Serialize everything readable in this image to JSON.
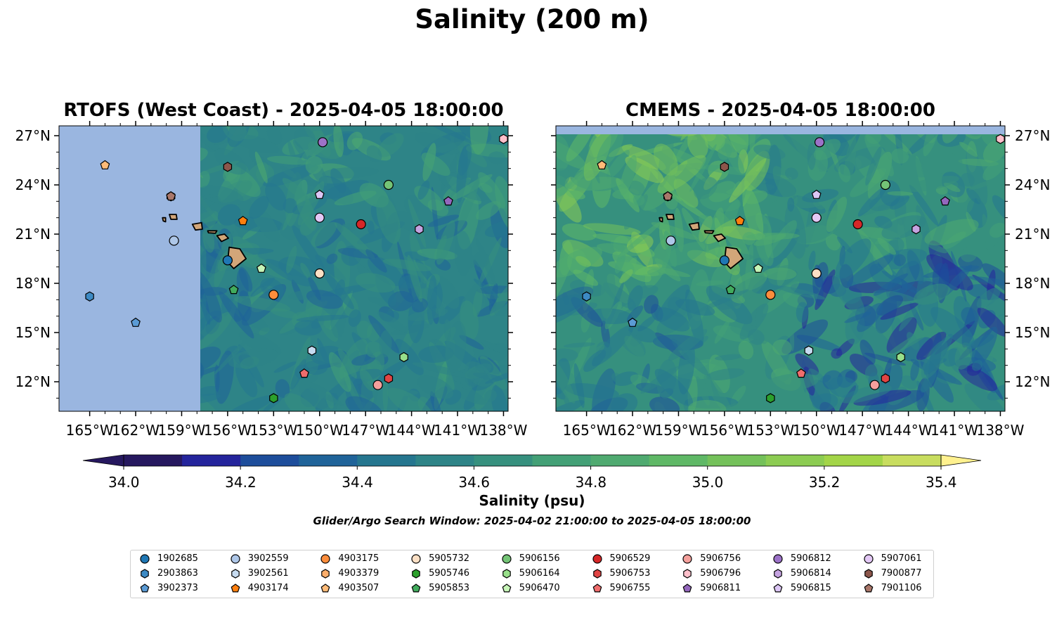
{
  "title": "Salinity (200 m)",
  "panels": [
    {
      "title": "RTOFS (West Coast) - 2025-04-05 18:00:00"
    },
    {
      "title": "CMEMS - 2025-04-05 18:00:00"
    }
  ],
  "colorbar": {
    "label": "Salinity (psu)",
    "ticks": [
      "34.0",
      "34.2",
      "34.4",
      "34.6",
      "34.8",
      "35.0",
      "35.2",
      "35.4"
    ]
  },
  "search_window": "Glider/Argo Search Window: 2025-04-02 21:00:00 to 2025-04-05 18:00:00",
  "chart_data": {
    "type": "map",
    "lon_ticks": [
      "165°W",
      "162°W",
      "159°W",
      "156°W",
      "153°W",
      "150°W",
      "147°W",
      "144°W",
      "141°W",
      "138°W"
    ],
    "lat_ticks": [
      "27°N",
      "24°N",
      "21°N",
      "18°N",
      "15°N",
      "12°N"
    ],
    "colorbar_range": [
      34.0,
      35.4
    ],
    "colorbar_levels": [
      34.0,
      34.1,
      34.2,
      34.3,
      34.4,
      34.5,
      34.6,
      34.7,
      34.8,
      34.9,
      35.0,
      35.1,
      35.2,
      35.3,
      35.4
    ],
    "colormap": [
      "#26185f",
      "#24249c",
      "#1d4d9b",
      "#1f6399",
      "#25768f",
      "#2e8487",
      "#36907e",
      "#43a076",
      "#4faa70",
      "#5fb866",
      "#74c15a",
      "#8ccc52",
      "#a3d548",
      "#c8dd5f",
      "#fff18f"
    ],
    "land_color": "#d2a679",
    "masked_color": "#9ab6e0",
    "floats": [
      {
        "id": "1902685",
        "marker": "circle",
        "color": "#1f77b4",
        "lon": -156.0,
        "lat": 19.4
      },
      {
        "id": "2903863",
        "marker": "hexagon",
        "color": "#3d8ac4",
        "lon": -165.0,
        "lat": 17.2
      },
      {
        "id": "3902373",
        "marker": "pentagon",
        "color": "#5b9bd5",
        "lon": -162.0,
        "lat": 15.6
      },
      {
        "id": "3902559",
        "marker": "circle",
        "color": "#aec7e8",
        "lon": -159.5,
        "lat": 20.6
      },
      {
        "id": "3902561",
        "marker": "hexagon",
        "color": "#c6dbf0",
        "lon": -150.5,
        "lat": 13.9
      },
      {
        "id": "4903174",
        "marker": "pentagon",
        "color": "#ff7f0e",
        "lon": -155.0,
        "lat": 21.8
      },
      {
        "id": "4903175",
        "marker": "circle",
        "color": "#fd8d3c",
        "lon": -153.0,
        "lat": 17.3
      },
      {
        "id": "4903379",
        "marker": "hexagon",
        "color": "#fdae6b",
        "lon": -159.7,
        "lat": 23.3
      },
      {
        "id": "4903507",
        "marker": "pentagon",
        "color": "#ffbb78",
        "lon": -164.0,
        "lat": 25.2
      },
      {
        "id": "5905732",
        "marker": "circle",
        "color": "#fde0c5",
        "lon": -150.0,
        "lat": 18.6
      },
      {
        "id": "5905746",
        "marker": "hexagon",
        "color": "#2ca02c",
        "lon": -153.0,
        "lat": 11.0
      },
      {
        "id": "5905853",
        "marker": "pentagon",
        "color": "#41ab5d",
        "lon": -155.6,
        "lat": 17.6
      },
      {
        "id": "5906156",
        "marker": "circle",
        "color": "#74c476",
        "lon": -145.5,
        "lat": 24.0
      },
      {
        "id": "5906164",
        "marker": "hexagon",
        "color": "#98df8a",
        "lon": -144.5,
        "lat": 13.5
      },
      {
        "id": "5906470",
        "marker": "pentagon",
        "color": "#c7f5b8",
        "lon": -153.8,
        "lat": 18.9
      },
      {
        "id": "5906529",
        "marker": "circle",
        "color": "#d62728",
        "lon": -147.3,
        "lat": 21.6
      },
      {
        "id": "5906753",
        "marker": "hexagon",
        "color": "#e04444",
        "lon": -145.5,
        "lat": 12.2
      },
      {
        "id": "5906755",
        "marker": "pentagon",
        "color": "#f06d6d",
        "lon": -151.0,
        "lat": 12.5
      },
      {
        "id": "5906756",
        "marker": "circle",
        "color": "#f4a09c",
        "lon": -146.2,
        "lat": 11.8
      },
      {
        "id": "5906796",
        "marker": "hexagon",
        "color": "#ffc0cb",
        "lon": -138.0,
        "lat": 26.8
      },
      {
        "id": "5906811",
        "marker": "pentagon",
        "color": "#9467bd",
        "lon": -141.6,
        "lat": 23.0
      },
      {
        "id": "5906812",
        "marker": "circle",
        "color": "#9c72c8",
        "lon": -149.8,
        "lat": 26.6
      },
      {
        "id": "5906814",
        "marker": "hexagon",
        "color": "#c5a3e0",
        "lon": -143.5,
        "lat": 21.3
      },
      {
        "id": "5906815",
        "marker": "pentagon",
        "color": "#dcc6f5",
        "lon": -150.0,
        "lat": 23.4
      },
      {
        "id": "5907061",
        "marker": "circle",
        "color": "#e3c8f5",
        "lon": -150.0,
        "lat": 22.0
      },
      {
        "id": "7900877",
        "marker": "hexagon",
        "color": "#8c564b",
        "lon": -156.0,
        "lat": 25.1
      },
      {
        "id": "7901106",
        "marker": "pentagon",
        "color": "#a9776a",
        "lon": -159.7,
        "lat": 23.3
      }
    ]
  }
}
